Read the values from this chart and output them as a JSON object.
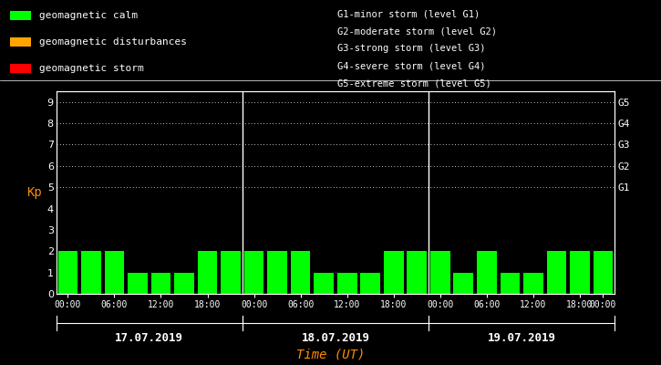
{
  "background_color": "#000000",
  "plot_bg_color": "#000000",
  "bar_color": "#00ff00",
  "text_color": "#ffffff",
  "date_label_color": "#ffffff",
  "ylabel_color": "#ff8c00",
  "xlabel_color": "#ff8c00",
  "dates": [
    "17.07.2019",
    "18.07.2019",
    "19.07.2019"
  ],
  "kp_values": [
    2,
    2,
    2,
    1,
    1,
    1,
    2,
    2,
    2,
    2,
    2,
    1,
    1,
    1,
    2,
    2,
    2,
    1,
    2,
    1,
    1,
    2,
    2,
    2
  ],
  "ylim_min": 0,
  "ylim_max": 9.5,
  "yticks": [
    0,
    1,
    2,
    3,
    4,
    5,
    6,
    7,
    8,
    9
  ],
  "dot_yticks": [
    5,
    6,
    7,
    8,
    9
  ],
  "right_yticks": [
    5,
    6,
    7,
    8,
    9
  ],
  "right_yticklabels": [
    "G1",
    "G2",
    "G3",
    "G4",
    "G5"
  ],
  "legend_items": [
    {
      "label": "geomagnetic calm",
      "color": "#00ff00"
    },
    {
      "label": "geomagnetic disturbances",
      "color": "#ffa500"
    },
    {
      "label": "geomagnetic storm",
      "color": "#ff0000"
    }
  ],
  "right_legend": [
    "G1-minor storm (level G1)",
    "G2-moderate storm (level G2)",
    "G3-strong storm (level G3)",
    "G4-severe storm (level G4)",
    "G5-extreme storm (level G5)"
  ],
  "xtick_positions": [
    0,
    2,
    4,
    6,
    8,
    10,
    12,
    14,
    16,
    18,
    20,
    22,
    23
  ],
  "xtick_labels": [
    "00:00",
    "06:00",
    "12:00",
    "18:00",
    "00:00",
    "06:00",
    "12:00",
    "18:00",
    "00:00",
    "06:00",
    "12:00",
    "18:00",
    "00:00"
  ],
  "bar_width": 0.85,
  "font_family": "monospace",
  "xlabel": "Time (UT)",
  "ylabel": "Kp"
}
